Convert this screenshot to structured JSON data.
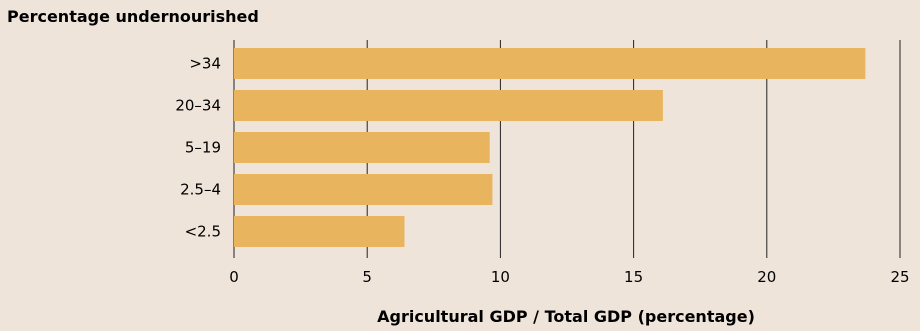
{
  "chart_data": {
    "type": "bar",
    "orientation": "horizontal",
    "title": "Percentage undernourished",
    "xlabel": "Agricultural GDP / Total GDP (percentage)",
    "categories": [
      ">34",
      "20–34",
      "5–19",
      "2.5–4",
      "<2.5"
    ],
    "values": [
      23.7,
      16.1,
      9.6,
      9.7,
      6.4
    ],
    "xlim": [
      0,
      25
    ],
    "xticks": [
      0,
      5,
      10,
      15,
      20,
      25
    ],
    "grid": "vertical",
    "bar_color": "#e8b55e"
  }
}
